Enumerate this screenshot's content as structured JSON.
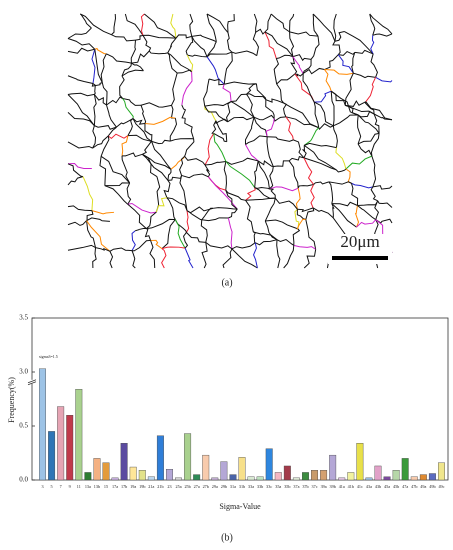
{
  "figure": {
    "scale_bar": "20μm",
    "panel_a_label": "(a)",
    "panel_b_label": "(b)"
  },
  "chart_data": {
    "type": "bar",
    "x_label": "Sigma-Value",
    "y_label": "Frequency(%)",
    "annotation": "sigma3=1.5",
    "categories": [
      "3",
      "5",
      "7",
      "9",
      "11",
      "13a",
      "13b",
      "15",
      "17a",
      "17b",
      "19a",
      "19b",
      "21a",
      "21b",
      "23",
      "25a",
      "25b",
      "27a",
      "27b",
      "29a",
      "29b",
      "31a",
      "31b",
      "33a",
      "33b",
      "33c",
      "35a",
      "35b",
      "37a",
      "37b",
      "37c",
      "39a",
      "39b",
      "41a",
      "41b",
      "41c",
      "43a",
      "43b",
      "45a",
      "45b",
      "47a",
      "47b",
      "49a",
      "49b",
      "49c"
    ],
    "values": [
      3.03,
      0.45,
      0.68,
      0.6,
      0.84,
      0.07,
      0.2,
      0.16,
      0.02,
      0.34,
      0.12,
      0.09,
      0.03,
      0.41,
      0.1,
      0.02,
      0.43,
      0.05,
      0.23,
      0.02,
      0.17,
      0.05,
      0.21,
      0.03,
      0.03,
      0.29,
      0.07,
      0.13,
      0.02,
      0.07,
      0.09,
      0.09,
      0.23,
      0.02,
      0.07,
      0.34,
      0.02,
      0.13,
      0.03,
      0.09,
      0.2,
      0.03,
      0.05,
      0.06,
      0.16
    ],
    "colors": [
      "#9dc3e6",
      "#2e75b6",
      "#e6a4b4",
      "#c0394b",
      "#a9d18e",
      "#2e7d32",
      "#f4b183",
      "#e39b3c",
      "#c9b1e0",
      "#5b4ba0",
      "#ffe699",
      "#e2e28a",
      "#bdd7ee",
      "#2f7ed8",
      "#b4a7d6",
      "#d9d9d9",
      "#a9d18e",
      "#2e8b57",
      "#f8cbad",
      "#c5b0d5",
      "#b4a7d6",
      "#4b64a8",
      "#f7e08a",
      "#d9ead3",
      "#bfe3c0",
      "#2e86de",
      "#f4b6c2",
      "#a33a4a",
      "#e2efda",
      "#3c8d40",
      "#c89b6a",
      "#d4a070",
      "#b4a7d6",
      "#e6c8e6",
      "#f2f2a0",
      "#e8e04a",
      "#9bc2e6",
      "#e1a1c8",
      "#7b4a9e",
      "#b6d7a8",
      "#3a9a3a",
      "#f8cbad",
      "#e08a30",
      "#5c6bc0",
      "#f0e68c"
    ],
    "ylim": [
      0,
      3.5
    ],
    "ybreak": [
      0.9,
      2.9
    ],
    "yticks": [
      {
        "value": 0,
        "label": "0.0"
      },
      0.5,
      {
        "value": 3,
        "label": "3.0"
      },
      3.5
    ]
  }
}
